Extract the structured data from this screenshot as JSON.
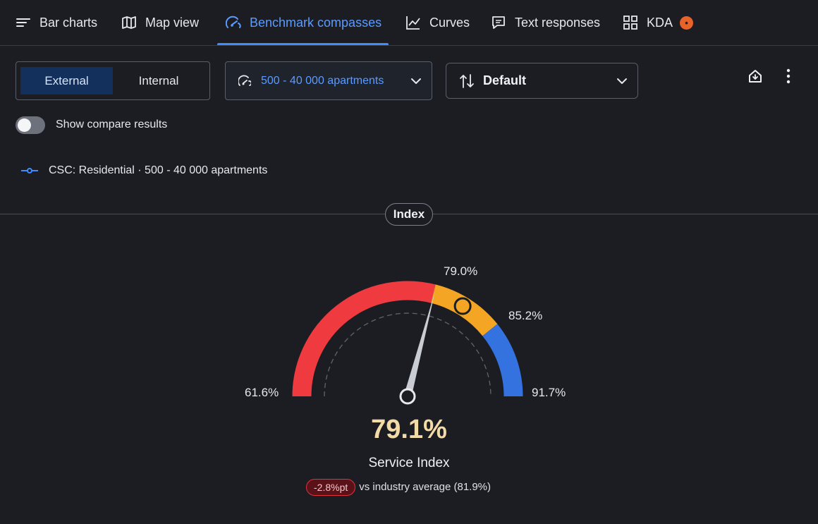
{
  "tabs": [
    {
      "label": "Bar charts",
      "icon": "bar-chart-lines-icon"
    },
    {
      "label": "Map view",
      "icon": "map-icon"
    },
    {
      "label": "Benchmark compasses",
      "icon": "compass-gauge-icon",
      "active": true
    },
    {
      "label": "Curves",
      "icon": "line-chart-icon"
    },
    {
      "label": "Text responses",
      "icon": "speech-bubble-icon"
    },
    {
      "label": "KDA",
      "icon": "grid-squares-icon",
      "badge_icon": "alert-circle-icon"
    }
  ],
  "segment": {
    "options": [
      "External",
      "Internal"
    ],
    "selected": "External"
  },
  "apartment_filter": {
    "label": "500 - 40 000 apartments",
    "icon": "gauge-small-icon"
  },
  "sort_dropdown": {
    "label": "Default",
    "icon": "sort-arrows-icon"
  },
  "actions": {
    "home_icon": "home-icon",
    "menu_icon": "kebab-menu-icon"
  },
  "compare_toggle": {
    "label": "Show compare results",
    "on": false
  },
  "legend": {
    "label": "CSC: Residential · 500 - 40 000 apartments",
    "color": "#3f8cff"
  },
  "section_chip": "Index",
  "gauge": {
    "min_label": "61.6%",
    "low_label": "79.0%",
    "mid_label": "85.2%",
    "max_label": "91.7%",
    "value": "79.1%",
    "title": "Service Index",
    "delta": "-2.8%pt",
    "compare_text": "vs industry average (81.9%)",
    "colors": {
      "low": "#ef3b3f",
      "mid": "#f5a524",
      "high": "#3472e0",
      "value_text": "#f3dba8"
    }
  },
  "chart_data": {
    "type": "gauge",
    "min": 61.6,
    "max": 91.7,
    "thresholds": [
      79.0,
      85.2
    ],
    "value": 79.1,
    "industry_average": 81.9,
    "delta": -2.8
  }
}
